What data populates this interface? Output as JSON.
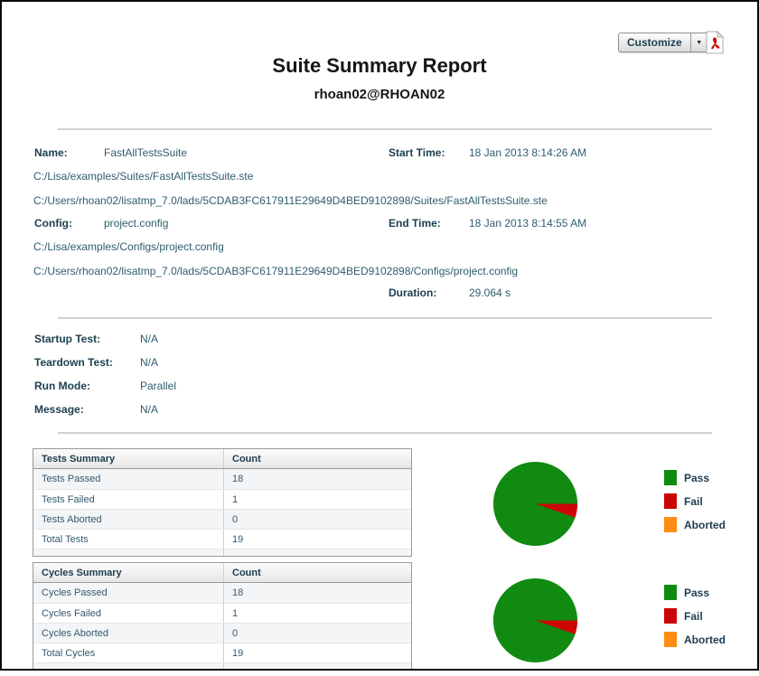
{
  "toolbar": {
    "customize_label": "Customize",
    "dropdown_glyph": "▼",
    "pdf_icon": "pdf-export-icon"
  },
  "header": {
    "title": "Suite Summary Report",
    "subtitle": "rhoan02@RHOAN02"
  },
  "info": {
    "name_label": "Name:",
    "name": "FastAllTestsSuite",
    "suite_path_1": "C:/Lisa/examples/Suites/FastAllTestsSuite.ste",
    "suite_path_2": "C:/Users/rhoan02/lisatmp_7.0/lads/5CDAB3FC617911E29649D4BED9102898/Suites/FastAllTestsSuite.ste",
    "start_time_label": "Start Time:",
    "start_time": "18 Jan 2013 8:14:26 AM",
    "config_label": "Config:",
    "config": "project.config",
    "config_path_1": "C:/Lisa/examples/Configs/project.config",
    "config_path_2": "C:/Users/rhoan02/lisatmp_7.0/lads/5CDAB3FC617911E29649D4BED9102898/Configs/project.config",
    "end_time_label": "End Time:",
    "end_time": "18 Jan 2013 8:14:55 AM",
    "duration_label": "Duration:",
    "duration": "29.064 s"
  },
  "details": {
    "startup_label": "Startup Test:",
    "startup": "N/A",
    "teardown_label": "Teardown Test:",
    "teardown": "N/A",
    "run_mode_label": "Run Mode:",
    "run_mode": "Parallel",
    "message_label": "Message:",
    "message": "N/A"
  },
  "tests_table": {
    "header": [
      "Tests Summary",
      "Count"
    ],
    "rows": [
      [
        "Tests Passed",
        "18"
      ],
      [
        "Tests Failed",
        "1"
      ],
      [
        "Tests Aborted",
        "0"
      ],
      [
        "Total Tests",
        "19"
      ]
    ]
  },
  "cycles_table": {
    "header": [
      "Cycles Summary",
      "Count"
    ],
    "rows": [
      [
        "Cycles Passed",
        "18"
      ],
      [
        "Cycles Failed",
        "1"
      ],
      [
        "Cycles Aborted",
        "0"
      ],
      [
        "Total Cycles",
        "19"
      ]
    ]
  },
  "legend": {
    "items": [
      {
        "label": "Pass",
        "color": "#118a11"
      },
      {
        "label": "Fail",
        "color": "#cc0606"
      },
      {
        "label": "Aborted",
        "color": "#ff8c14"
      }
    ]
  },
  "chart_data": [
    {
      "type": "pie",
      "title": "Tests Summary",
      "labels": [
        "Pass",
        "Fail",
        "Aborted"
      ],
      "values": [
        18,
        1,
        0
      ],
      "colors": [
        "#118a11",
        "#cc0606",
        "#ff8c14"
      ],
      "legend_position": "right"
    },
    {
      "type": "pie",
      "title": "Cycles Summary",
      "labels": [
        "Pass",
        "Fail",
        "Aborted"
      ],
      "values": [
        18,
        1,
        0
      ],
      "colors": [
        "#118a11",
        "#cc0606",
        "#ff8c14"
      ],
      "legend_position": "right"
    }
  ]
}
